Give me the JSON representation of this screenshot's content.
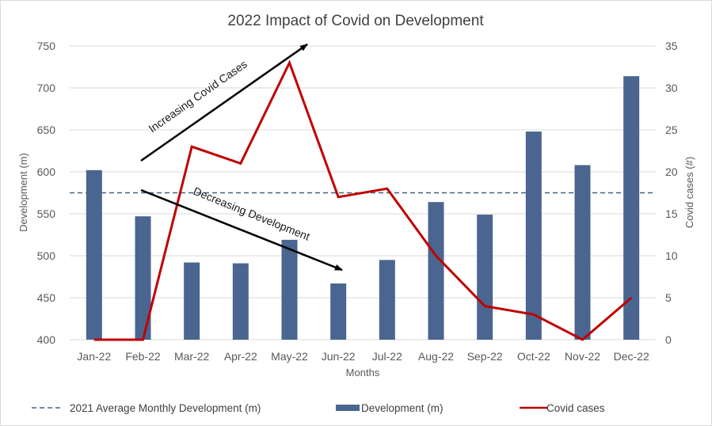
{
  "chart_data": {
    "type": "bar+line",
    "title": "2022 Impact of Covid on Development",
    "xlabel": "Months",
    "ylabel_left": "Development (m)",
    "ylabel_right": "Covid cases (#)",
    "categories": [
      "Jan-22",
      "Feb-22",
      "Mar-22",
      "Apr-22",
      "May-22",
      "Jun-22",
      "Jul-22",
      "Aug-22",
      "Sep-22",
      "Oct-22",
      "Nov-22",
      "Dec-22"
    ],
    "series": [
      {
        "name": "Development (m)",
        "type": "bar",
        "axis": "left",
        "color": "#4a6690",
        "values": [
          602,
          547,
          492,
          491,
          519,
          467,
          495,
          564,
          549,
          648,
          608,
          714
        ]
      },
      {
        "name": "Covid cases",
        "type": "line",
        "axis": "right",
        "color": "#c00000",
        "values": [
          0,
          0,
          23,
          21,
          33,
          17,
          18,
          10,
          4,
          3,
          0,
          5
        ]
      },
      {
        "name": "2021 Average Monthly Development (m)",
        "type": "reference-line",
        "axis": "left",
        "color": "#44607f",
        "value": 575
      }
    ],
    "ylim_left": [
      400,
      750
    ],
    "yticks_left": [
      400,
      450,
      500,
      550,
      600,
      650,
      700,
      750
    ],
    "ylim_right": [
      0,
      35
    ],
    "yticks_right": [
      0,
      5,
      10,
      15,
      20,
      25,
      30,
      35
    ],
    "grid": true,
    "legend_position": "bottom",
    "annotations": [
      {
        "text": "Increasing Covid Cases",
        "direction": "up"
      },
      {
        "text": "Decreasing Development",
        "direction": "down"
      }
    ]
  },
  "legend": {
    "avg_label": "2021 Average Monthly Development (m)",
    "dev_label": "Development (m)",
    "covid_label": "Covid cases"
  }
}
